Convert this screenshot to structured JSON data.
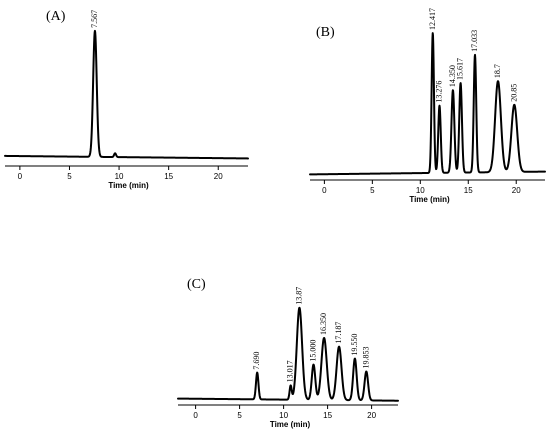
{
  "chart_data": [
    {
      "type": "line",
      "panel_label": "(A)",
      "xlabel": "Time (min)",
      "xlim": [
        -1.5,
        23
      ],
      "xticks": [
        0,
        5,
        10,
        15,
        20
      ],
      "baseline": 0.08,
      "drift": -0.02,
      "peaks": [
        {
          "label": "7.567",
          "x": 7.567,
          "height": 1.0,
          "width": 0.18
        },
        {
          "label": "",
          "x": 9.6,
          "height": 0.03,
          "width": 0.1
        }
      ]
    },
    {
      "type": "line",
      "panel_label": "(B)",
      "xlabel": "Time (min)",
      "xlim": [
        -1.5,
        23
      ],
      "xticks": [
        0,
        5,
        10,
        15,
        20
      ],
      "baseline": 0.04,
      "drift": 0.02,
      "peaks": [
        {
          "label": "12.417",
          "x": 11.3,
          "height": 1.0,
          "width": 0.12
        },
        {
          "label": "13.276",
          "x": 12.0,
          "height": 0.48,
          "width": 0.13
        },
        {
          "label": "14.350",
          "x": 13.4,
          "height": 0.59,
          "width": 0.15
        },
        {
          "label": "15.617",
          "x": 14.2,
          "height": 0.64,
          "width": 0.14
        },
        {
          "label": "17.033",
          "x": 15.7,
          "height": 0.84,
          "width": 0.13
        },
        {
          "label": "18.7",
          "x": 18.1,
          "height": 0.65,
          "width": 0.3
        },
        {
          "label": "20.85",
          "x": 19.8,
          "height": 0.48,
          "width": 0.3
        }
      ]
    },
    {
      "type": "line",
      "panel_label": "(C)",
      "xlabel": "Time (min)",
      "xlim": [
        -2,
        23
      ],
      "xticks": [
        0,
        5,
        10,
        15,
        20
      ],
      "baseline": 0.06,
      "drift": -0.02,
      "peaks": [
        {
          "label": "7.690",
          "x": 7.0,
          "height": 0.25,
          "width": 0.14
        },
        {
          "label": "13.017",
          "x": 10.8,
          "height": 0.13,
          "width": 0.12
        },
        {
          "label": "13.87",
          "x": 11.8,
          "height": 0.86,
          "width": 0.3
        },
        {
          "label": "15.000",
          "x": 13.4,
          "height": 0.33,
          "width": 0.2
        },
        {
          "label": "16.350",
          "x": 14.6,
          "height": 0.58,
          "width": 0.3
        },
        {
          "label": "17.187",
          "x": 16.3,
          "height": 0.5,
          "width": 0.28
        },
        {
          "label": "19.550",
          "x": 18.1,
          "height": 0.39,
          "width": 0.2
        },
        {
          "label": "19.853",
          "x": 19.4,
          "height": 0.27,
          "width": 0.2
        }
      ]
    }
  ]
}
